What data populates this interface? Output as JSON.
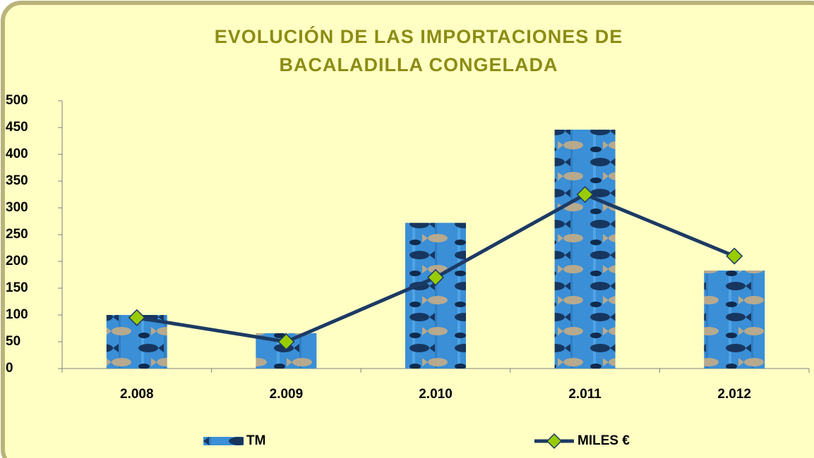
{
  "chart_data": {
    "type": "bar_line",
    "title": [
      "EVOLUCIÓN DE LAS IMPORTACIONES DE",
      "BACALADILLA CONGELADA"
    ],
    "categories": [
      "2.008",
      "2.009",
      "2.010",
      "2.011",
      "2.012"
    ],
    "series": [
      {
        "name": "TM",
        "type": "bar",
        "color": "#3a8fd6",
        "values": [
          100,
          66,
          272,
          446,
          183
        ]
      },
      {
        "name": "MILES €",
        "type": "line",
        "color": "#1c3a64",
        "marker_color": "#99cc00",
        "values": [
          95,
          50,
          170,
          325,
          210
        ]
      }
    ],
    "ylim": [
      0,
      500
    ],
    "yticks": [
      0,
      50,
      100,
      150,
      200,
      250,
      300,
      350,
      400,
      450,
      500
    ],
    "grid": false,
    "legend": "bottom"
  }
}
